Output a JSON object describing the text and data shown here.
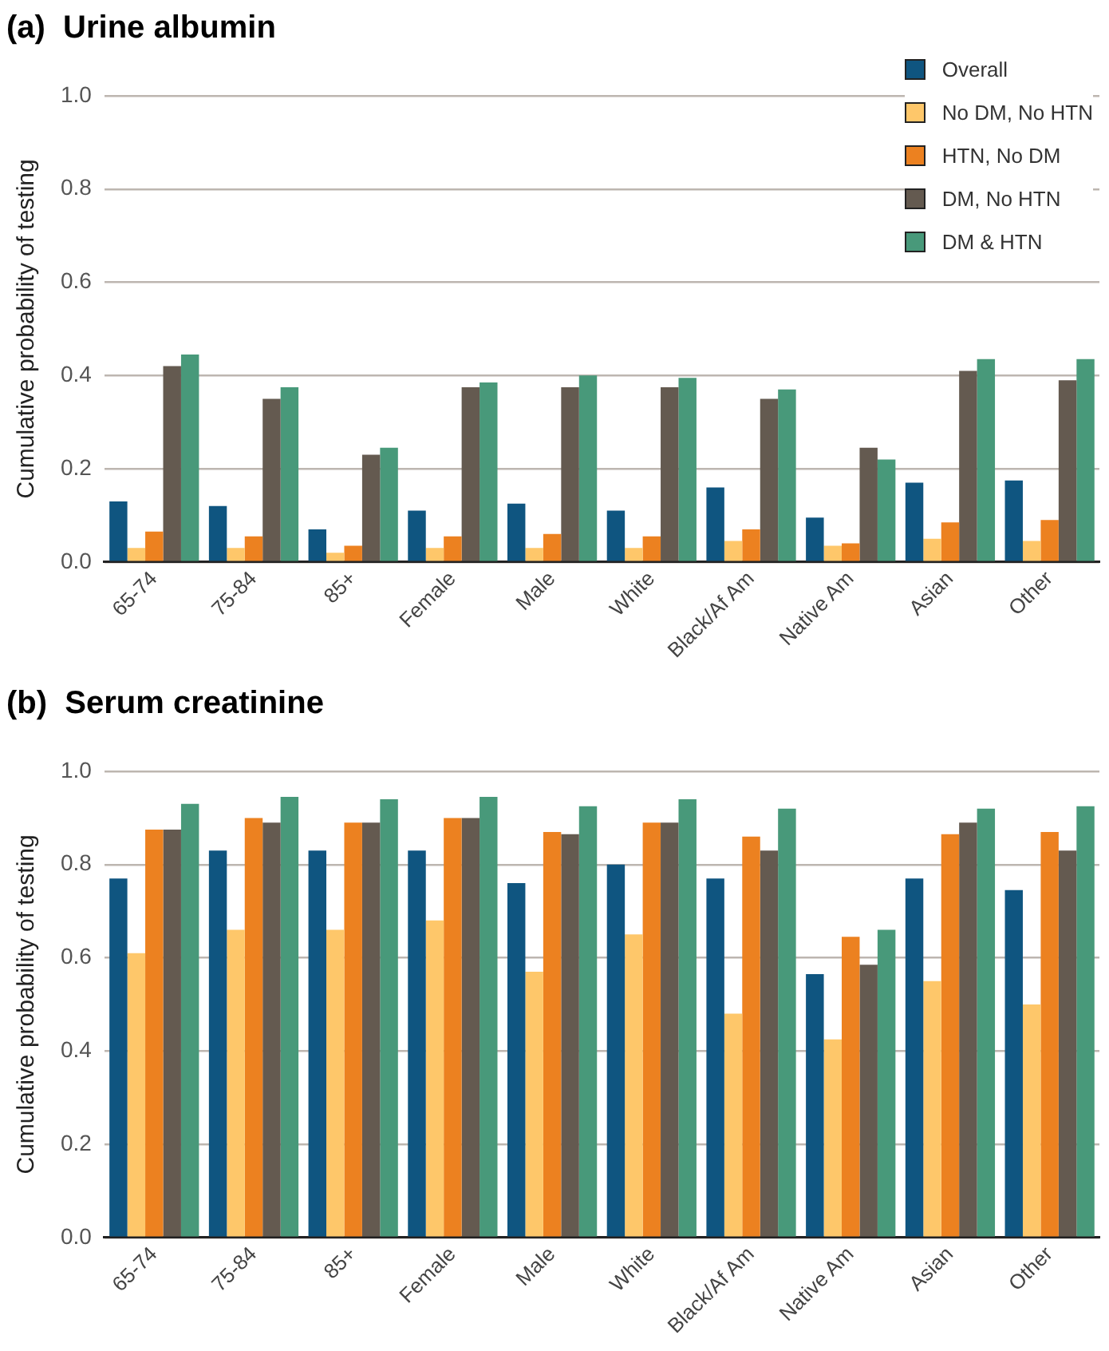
{
  "chart_data": [
    {
      "type": "bar",
      "title": "(a)  Urine albumin",
      "ylabel": "Cumulative probability of testing",
      "categories": [
        "65-74",
        "75-84",
        "85+",
        "Female",
        "Male",
        "White",
        "Black/Af Am",
        "Native Am",
        "Asian",
        "Other"
      ],
      "ylim": [
        0,
        1.0
      ],
      "yticks": [
        {
          "value": 0,
          "label": "0.0"
        },
        {
          "value": 0.2,
          "label": "0.2"
        },
        {
          "value": 0.4,
          "label": "0.4"
        },
        {
          "value": 0.6,
          "label": "0.6"
        },
        {
          "value": 0.8,
          "label": "0.8"
        },
        {
          "value": 1.0,
          "label": "1.0"
        }
      ],
      "grid": "y",
      "legend": "top right",
      "series": [
        {
          "name": "Overall",
          "color": "#0f5580",
          "values": [
            0.13,
            0.12,
            0.07,
            0.11,
            0.125,
            0.11,
            0.16,
            0.095,
            0.17,
            0.175
          ]
        },
        {
          "name": "No DM, No HTN",
          "color": "#fec76a",
          "values": [
            0.03,
            0.03,
            0.02,
            0.03,
            0.03,
            0.03,
            0.045,
            0.035,
            0.05,
            0.045
          ]
        },
        {
          "name": "HTN, No DM",
          "color": "#ec8120",
          "values": [
            0.065,
            0.055,
            0.035,
            0.055,
            0.06,
            0.055,
            0.07,
            0.04,
            0.085,
            0.09
          ]
        },
        {
          "name": "DM, No HTN",
          "color": "#645a50",
          "values": [
            0.42,
            0.35,
            0.23,
            0.375,
            0.375,
            0.375,
            0.35,
            0.245,
            0.41,
            0.39
          ]
        },
        {
          "name": "DM & HTN",
          "color": "#48997a",
          "values": [
            0.445,
            0.375,
            0.245,
            0.385,
            0.4,
            0.395,
            0.37,
            0.22,
            0.435,
            0.435
          ]
        }
      ]
    },
    {
      "type": "bar",
      "title": "(b)  Serum creatinine",
      "ylabel": "Cumulative probability of testing",
      "categories": [
        "65-74",
        "75-84",
        "85+",
        "Female",
        "Male",
        "White",
        "Black/Af Am",
        "Native Am",
        "Asian",
        "Other"
      ],
      "ylim": [
        0,
        1.0
      ],
      "yticks": [
        {
          "value": 0,
          "label": "0.0"
        },
        {
          "value": 0.2,
          "label": "0.2"
        },
        {
          "value": 0.4,
          "label": "0.4"
        },
        {
          "value": 0.6,
          "label": "0.6"
        },
        {
          "value": 0.8,
          "label": "0.8"
        },
        {
          "value": 1.0,
          "label": "1.0"
        }
      ],
      "grid": "y",
      "series": [
        {
          "color": "#0f5580",
          "values": [
            0.77,
            0.83,
            0.83,
            0.83,
            0.76,
            0.8,
            0.77,
            0.565,
            0.77,
            0.745
          ]
        },
        {
          "color": "#fec76a",
          "values": [
            0.61,
            0.66,
            0.66,
            0.68,
            0.57,
            0.65,
            0.48,
            0.425,
            0.55,
            0.5
          ]
        },
        {
          "color": "#ec8120",
          "values": [
            0.875,
            0.9,
            0.89,
            0.9,
            0.87,
            0.89,
            0.86,
            0.645,
            0.865,
            0.87
          ]
        },
        {
          "color": "#645a50",
          "values": [
            0.875,
            0.89,
            0.89,
            0.9,
            0.865,
            0.89,
            0.83,
            0.585,
            0.89,
            0.83
          ]
        },
        {
          "color": "#48997a",
          "values": [
            0.93,
            0.945,
            0.94,
            0.945,
            0.925,
            0.94,
            0.92,
            0.66,
            0.92,
            0.925
          ]
        }
      ]
    }
  ]
}
